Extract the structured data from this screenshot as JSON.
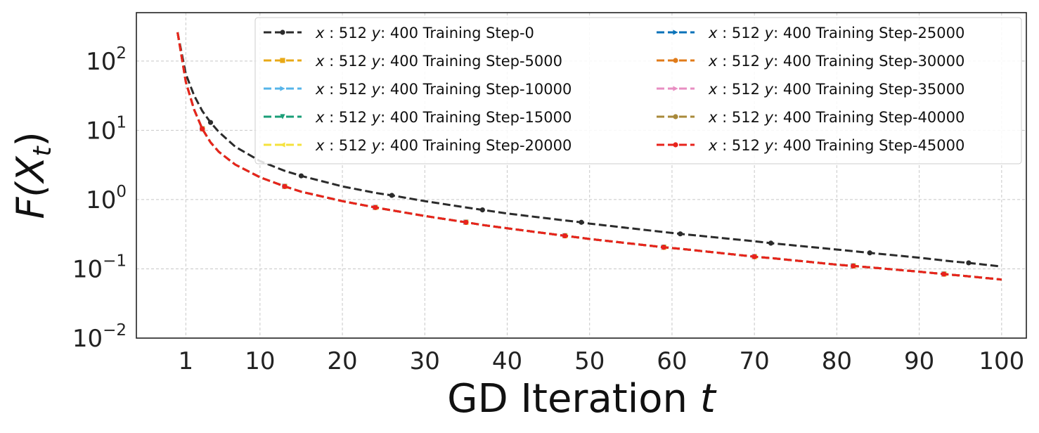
{
  "chart_data": {
    "type": "line",
    "title": "",
    "xlabel": "GD Iteration t",
    "ylabel": "F(X_t)",
    "xlabel_parts": {
      "main": "GD Iteration",
      "var": "t"
    },
    "ylabel_parts": {
      "func": "F(",
      "var": "X",
      "sub": "t",
      "close": ")"
    },
    "yscale": "log",
    "xlim": [
      -5,
      103
    ],
    "ylim": [
      0.01,
      500
    ],
    "grid": true,
    "legend_position": "top-right",
    "x_ticks": [
      "1",
      "10",
      "20",
      "30",
      "40",
      "50",
      "60",
      "70",
      "80",
      "90",
      "100"
    ],
    "x_tick_values": [
      1,
      10,
      20,
      30,
      40,
      50,
      60,
      70,
      80,
      90,
      100
    ],
    "y_ticks": [
      {
        "base": "10",
        "exp": "2",
        "value": 100
      },
      {
        "base": "10",
        "exp": "1",
        "value": 10
      },
      {
        "base": "10",
        "exp": "0",
        "value": 1
      },
      {
        "base": "10",
        "exp": "−1",
        "value": 0.1
      },
      {
        "base": "10",
        "exp": "−2",
        "value": 0.01
      }
    ],
    "x": [
      0,
      1,
      2,
      3,
      4,
      5,
      7,
      10,
      13,
      15,
      20,
      24,
      26,
      30,
      35,
      37,
      40,
      47,
      49,
      50,
      59,
      61,
      70,
      72,
      80,
      82,
      84,
      90,
      93,
      94,
      96,
      100
    ],
    "marker_x": {
      "training_step_0": [
        4,
        15,
        26,
        37,
        49,
        61,
        72,
        84,
        96
      ],
      "trained": [
        3,
        13,
        24,
        35,
        47,
        59,
        70,
        82,
        93
      ]
    },
    "series": [
      {
        "name": "Training Step-0",
        "color": "#2b2b2b",
        "marker": "circle",
        "values": [
          260,
          65,
          32,
          19,
          13,
          9.5,
          5.8,
          3.6,
          2.6,
          2.2,
          1.55,
          1.25,
          1.15,
          0.95,
          0.77,
          0.71,
          0.63,
          0.5,
          0.47,
          0.45,
          0.34,
          0.32,
          0.25,
          0.235,
          0.19,
          0.18,
          0.17,
          0.145,
          0.132,
          0.128,
          0.122,
          0.108
        ]
      },
      {
        "name": "Training Step-5000",
        "color": "#e8a917",
        "marker": "square",
        "values": [
          260,
          50,
          20,
          10.5,
          6.7,
          4.9,
          3.2,
          2.1,
          1.55,
          1.3,
          0.95,
          0.77,
          0.7,
          0.58,
          0.47,
          0.43,
          0.385,
          0.3,
          0.28,
          0.27,
          0.205,
          0.195,
          0.15,
          0.143,
          0.115,
          0.11,
          0.105,
          0.091,
          0.084,
          0.082,
          0.078,
          0.07
        ]
      },
      {
        "name": "Training Step-10000",
        "color": "#56b4e9",
        "marker": "triangle-right",
        "values": [
          260,
          50,
          20,
          10.5,
          6.7,
          4.9,
          3.2,
          2.1,
          1.55,
          1.3,
          0.95,
          0.77,
          0.7,
          0.58,
          0.47,
          0.43,
          0.385,
          0.3,
          0.28,
          0.27,
          0.205,
          0.195,
          0.15,
          0.143,
          0.115,
          0.11,
          0.105,
          0.091,
          0.084,
          0.082,
          0.078,
          0.07
        ]
      },
      {
        "name": "Training Step-15000",
        "color": "#1a9e77",
        "marker": "triangle-down",
        "values": [
          260,
          50,
          20,
          10.5,
          6.7,
          4.9,
          3.2,
          2.1,
          1.55,
          1.3,
          0.95,
          0.77,
          0.7,
          0.58,
          0.47,
          0.43,
          0.385,
          0.3,
          0.28,
          0.27,
          0.205,
          0.195,
          0.15,
          0.143,
          0.115,
          0.11,
          0.105,
          0.091,
          0.084,
          0.082,
          0.078,
          0.07
        ]
      },
      {
        "name": "Training Step-20000",
        "color": "#f5e23c",
        "marker": "triangle-left",
        "values": [
          260,
          50,
          20,
          10.5,
          6.7,
          4.9,
          3.2,
          2.1,
          1.55,
          1.3,
          0.95,
          0.77,
          0.7,
          0.58,
          0.47,
          0.43,
          0.385,
          0.3,
          0.28,
          0.27,
          0.205,
          0.195,
          0.15,
          0.143,
          0.115,
          0.11,
          0.105,
          0.091,
          0.084,
          0.082,
          0.078,
          0.07
        ]
      },
      {
        "name": "Training Step-25000",
        "color": "#0a72b8",
        "marker": "triangle-right",
        "values": [
          260,
          50,
          20,
          10.5,
          6.7,
          4.9,
          3.2,
          2.1,
          1.55,
          1.3,
          0.95,
          0.77,
          0.7,
          0.58,
          0.47,
          0.43,
          0.385,
          0.3,
          0.28,
          0.27,
          0.205,
          0.195,
          0.15,
          0.143,
          0.115,
          0.11,
          0.105,
          0.091,
          0.084,
          0.082,
          0.078,
          0.07
        ]
      },
      {
        "name": "Training Step-30000",
        "color": "#e07b1a",
        "marker": "circle",
        "values": [
          260,
          50,
          20,
          10.5,
          6.7,
          4.9,
          3.2,
          2.1,
          1.55,
          1.3,
          0.95,
          0.77,
          0.7,
          0.58,
          0.47,
          0.43,
          0.385,
          0.3,
          0.28,
          0.27,
          0.205,
          0.195,
          0.15,
          0.143,
          0.115,
          0.11,
          0.105,
          0.091,
          0.084,
          0.082,
          0.078,
          0.07
        ]
      },
      {
        "name": "Training Step-35000",
        "color": "#e88ec2",
        "marker": "triangle-right",
        "values": [
          260,
          50,
          20,
          10.5,
          6.7,
          4.9,
          3.2,
          2.1,
          1.55,
          1.3,
          0.95,
          0.77,
          0.7,
          0.58,
          0.47,
          0.43,
          0.385,
          0.3,
          0.28,
          0.27,
          0.205,
          0.195,
          0.15,
          0.143,
          0.115,
          0.11,
          0.105,
          0.091,
          0.084,
          0.082,
          0.078,
          0.07
        ]
      },
      {
        "name": "Training Step-40000",
        "color": "#a8893a",
        "marker": "circle",
        "values": [
          260,
          50,
          20,
          10.5,
          6.7,
          4.9,
          3.2,
          2.1,
          1.55,
          1.3,
          0.95,
          0.77,
          0.7,
          0.58,
          0.47,
          0.43,
          0.385,
          0.3,
          0.28,
          0.27,
          0.205,
          0.195,
          0.15,
          0.143,
          0.115,
          0.11,
          0.105,
          0.091,
          0.084,
          0.082,
          0.078,
          0.07
        ]
      },
      {
        "name": "Training Step-45000",
        "color": "#e8231c",
        "marker": "circle",
        "values": [
          260,
          50,
          20,
          10.5,
          6.7,
          4.9,
          3.2,
          2.1,
          1.55,
          1.3,
          0.95,
          0.77,
          0.7,
          0.58,
          0.47,
          0.43,
          0.385,
          0.3,
          0.28,
          0.27,
          0.205,
          0.195,
          0.15,
          0.143,
          0.115,
          0.11,
          0.105,
          0.091,
          0.084,
          0.082,
          0.078,
          0.07
        ]
      }
    ],
    "legend_prefix": {
      "x_var": "x",
      "x_sep": ":",
      "x_val": "512",
      "y_var": "y",
      "y_sep": ":",
      "y_val": "400"
    }
  }
}
